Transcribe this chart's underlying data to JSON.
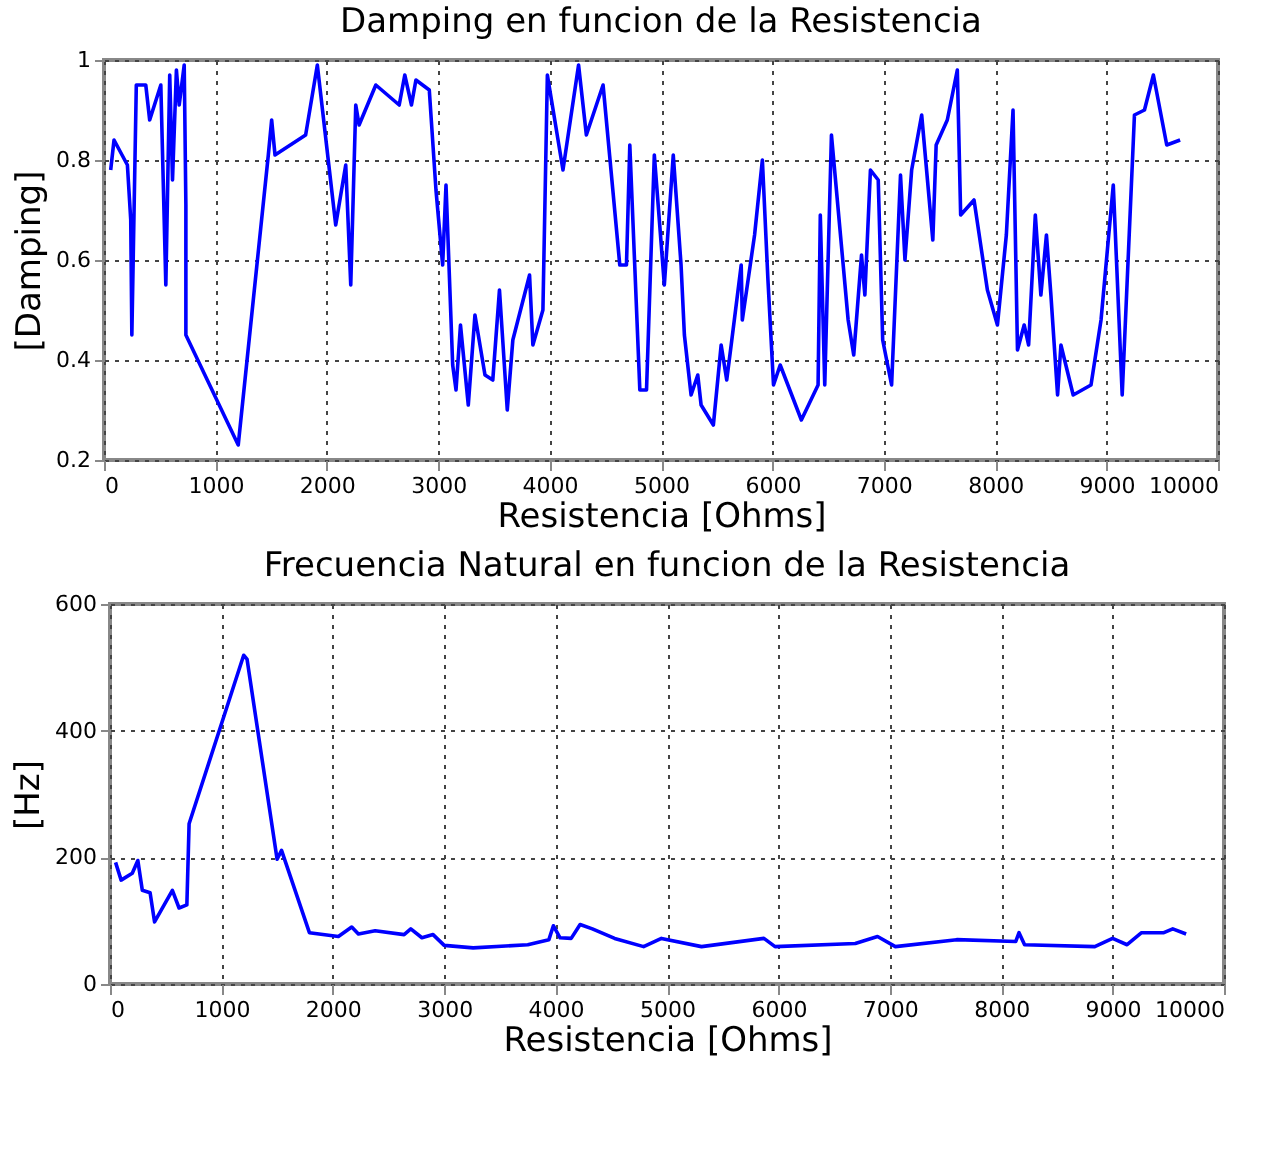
{
  "chart_data": [
    {
      "type": "line",
      "title": "Damping en funcion de la Resistencia",
      "xlabel": "Resistencia [Ohms]",
      "ylabel": "[Damping]",
      "xlim": [
        0,
        10000
      ],
      "xticks": [
        0,
        1000,
        2000,
        3000,
        4000,
        5000,
        6000,
        7000,
        8000,
        9000,
        10000
      ],
      "ylim": [
        0.2,
        1
      ],
      "yticks": [
        0.2,
        0.4,
        0.6,
        0.8,
        1
      ],
      "grid": true,
      "line_style": "solid",
      "x": [
        60,
        90,
        210,
        240,
        250,
        290,
        375,
        410,
        510,
        555,
        590,
        615,
        650,
        675,
        720,
        735,
        735,
        1205,
        1475,
        1505,
        1535,
        1810,
        1915,
        2080,
        2170,
        2215,
        2260,
        2290,
        2440,
        2650,
        2700,
        2760,
        2800,
        2920,
        2980,
        3040,
        3070,
        3130,
        3160,
        3200,
        3270,
        3330,
        3420,
        3490,
        3550,
        3620,
        3670,
        3820,
        3850,
        3940,
        3980,
        4120,
        4260,
        4330,
        4480,
        4630,
        4690,
        4720,
        4810,
        4870,
        4940,
        5030,
        5110,
        5180,
        5210,
        5270,
        5330,
        5360,
        5470,
        5540,
        5590,
        5630,
        5720,
        5730,
        5840,
        5910,
        5960,
        6010,
        6070,
        6260,
        6410,
        6430,
        6470,
        6530,
        6680,
        6730,
        6800,
        6830,
        6880,
        6950,
        6990,
        7070,
        7150,
        7190,
        7250,
        7340,
        7440,
        7470,
        7570,
        7660,
        7690,
        7810,
        7930,
        8020,
        8100,
        8160,
        8200,
        8260,
        8300,
        8360,
        8410,
        8460,
        8500,
        8560,
        8590,
        8700,
        8860,
        8950,
        9060,
        9140,
        9250,
        9340,
        9420,
        9540,
        9660
      ],
      "series": [
        {
          "color": "#0000ff",
          "values": [
            0.78,
            0.84,
            0.79,
            0.68,
            0.45,
            0.95,
            0.95,
            0.88,
            0.95,
            0.55,
            0.97,
            0.76,
            0.98,
            0.91,
            0.99,
            0.71,
            0.45,
            0.23,
            0.81,
            0.88,
            0.81,
            0.85,
            0.99,
            0.67,
            0.79,
            0.55,
            0.91,
            0.87,
            0.95,
            0.91,
            0.97,
            0.91,
            0.96,
            0.94,
            0.74,
            0.59,
            0.75,
            0.39,
            0.34,
            0.47,
            0.31,
            0.49,
            0.37,
            0.36,
            0.54,
            0.3,
            0.44,
            0.57,
            0.43,
            0.5,
            0.97,
            0.78,
            0.99,
            0.85,
            0.95,
            0.59,
            0.59,
            0.83,
            0.34,
            0.34,
            0.81,
            0.55,
            0.81,
            0.59,
            0.45,
            0.33,
            0.37,
            0.31,
            0.27,
            0.43,
            0.36,
            0.43,
            0.59,
            0.48,
            0.65,
            0.8,
            0.56,
            0.35,
            0.39,
            0.28,
            0.35,
            0.69,
            0.35,
            0.85,
            0.48,
            0.41,
            0.61,
            0.53,
            0.78,
            0.76,
            0.44,
            0.35,
            0.77,
            0.6,
            0.78,
            0.89,
            0.64,
            0.83,
            0.88,
            0.98,
            0.69,
            0.72,
            0.54,
            0.47,
            0.65,
            0.9,
            0.42,
            0.47,
            0.43,
            0.69,
            0.53,
            0.65,
            0.53,
            0.33,
            0.43,
            0.33,
            0.35,
            0.48,
            0.75,
            0.33,
            0.89,
            0.9,
            0.97,
            0.83,
            0.84
          ]
        }
      ]
    },
    {
      "type": "line",
      "title": "Frecuencia Natural en funcion de la Resistencia",
      "xlabel": "Resistencia [Ohms]",
      "ylabel": "[Hz]",
      "xlim": [
        0,
        10000
      ],
      "xticks": [
        0,
        1000,
        2000,
        3000,
        4000,
        5000,
        6000,
        7000,
        8000,
        9000,
        10000
      ],
      "ylim": [
        0,
        600
      ],
      "yticks": [
        0,
        200,
        400,
        600
      ],
      "grid": true,
      "line_style": "solid",
      "x": [
        50,
        100,
        200,
        250,
        290,
        360,
        400,
        560,
        620,
        690,
        710,
        1200,
        1230,
        1500,
        1540,
        1790,
        2050,
        2170,
        2230,
        2380,
        2640,
        2700,
        2800,
        2900,
        3000,
        3260,
        3750,
        3940,
        3980,
        4040,
        4140,
        4220,
        4330,
        4530,
        4790,
        4950,
        5310,
        5870,
        5970,
        6690,
        6890,
        7050,
        7600,
        8130,
        8160,
        8210,
        8840,
        9000,
        9130,
        9260,
        9460,
        9540,
        9660
      ],
      "series": [
        {
          "color": "#0000ff",
          "values": [
            192,
            164,
            175,
            195,
            148,
            144,
            98,
            148,
            120,
            125,
            253,
            519,
            513,
            197,
            211,
            81,
            75,
            90,
            79,
            84,
            78,
            87,
            73,
            78,
            61,
            57,
            62,
            70,
            92,
            73,
            72,
            94,
            87,
            72,
            59,
            72,
            59,
            72,
            59,
            64,
            75,
            59,
            70,
            67,
            81,
            62,
            59,
            72,
            62,
            81,
            81,
            87,
            79
          ]
        }
      ]
    }
  ]
}
